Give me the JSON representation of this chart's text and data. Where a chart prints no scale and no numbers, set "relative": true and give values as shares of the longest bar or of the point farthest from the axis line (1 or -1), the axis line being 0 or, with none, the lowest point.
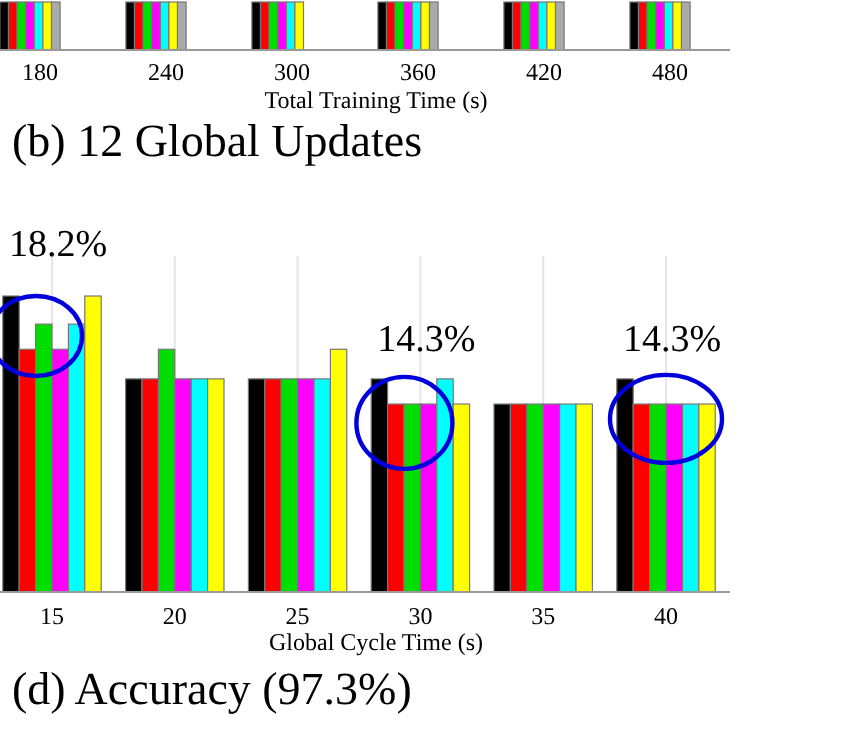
{
  "chart_data": [
    {
      "type": "bar",
      "relative": true,
      "title": "(b) 12 Global Updates",
      "xlabel": "Total Training Time (s)",
      "categories": [
        "180",
        "240",
        "300",
        "360",
        "420",
        "480"
      ],
      "series": [
        {
          "color": "#000000",
          "values": [
            1,
            1,
            1,
            1,
            1,
            1
          ]
        },
        {
          "color": "#ff0000",
          "values": [
            1,
            1,
            1,
            1,
            1,
            1
          ]
        },
        {
          "color": "#00dd00",
          "values": [
            1,
            1,
            1,
            1,
            1,
            1
          ]
        },
        {
          "color": "#ff00ff",
          "values": [
            1,
            1,
            1,
            1,
            1,
            1
          ]
        },
        {
          "color": "#00ffff",
          "values": [
            1,
            1,
            1,
            1,
            1,
            1
          ]
        },
        {
          "color": "#ffff00",
          "values": [
            1,
            1,
            1,
            1,
            1,
            1
          ]
        },
        {
          "color": "#aaaaaa",
          "values": [
            1,
            1,
            null,
            1,
            1,
            1
          ]
        }
      ]
    },
    {
      "type": "bar",
      "relative": true,
      "title": "(d) Accuracy (97.3%)",
      "xlabel": "Global Cycle Time (s)",
      "grid": "x",
      "categories": [
        "15",
        "20",
        "25",
        "30",
        "35",
        "40"
      ],
      "series": [
        {
          "color": "#000000",
          "values": [
            1,
            0.72,
            0.72,
            0.72,
            0.635,
            0.72
          ]
        },
        {
          "color": "#ff0000",
          "values": [
            0.82,
            0.72,
            0.72,
            0.635,
            0.635,
            0.635
          ]
        },
        {
          "color": "#00dd00",
          "values": [
            0.905,
            0.82,
            0.72,
            0.635,
            0.635,
            0.635
          ]
        },
        {
          "color": "#ff00ff",
          "values": [
            0.82,
            0.72,
            0.72,
            0.635,
            0.635,
            0.635
          ]
        },
        {
          "color": "#00ffff",
          "values": [
            0.905,
            0.72,
            0.72,
            0.72,
            0.635,
            0.635
          ]
        },
        {
          "color": "#ffff00",
          "values": [
            1,
            0.72,
            0.82,
            0.635,
            0.635,
            0.635
          ]
        }
      ],
      "annotations": [
        "18.2%",
        "14.3%",
        "14.3%"
      ]
    }
  ]
}
